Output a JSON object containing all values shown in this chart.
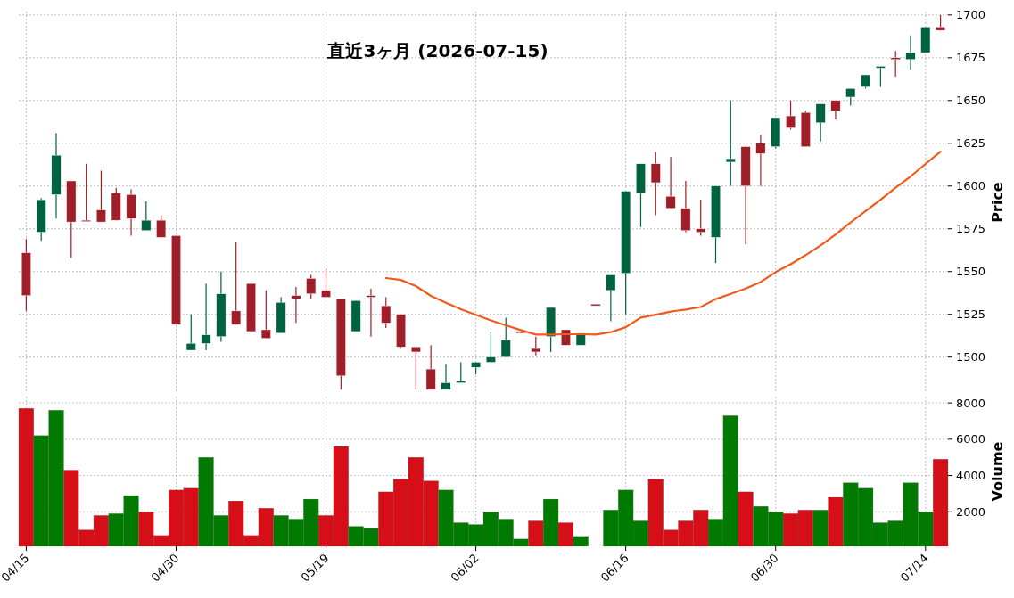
{
  "chart_data": [
    {
      "type": "candlestick",
      "title": "直近3ヶ月 (2026-07-15)",
      "ylabel": "Price",
      "tick_labels": "y",
      "grid": true,
      "categories": [
        null,
        null,
        null,
        null,
        null,
        null,
        null,
        null,
        null,
        null,
        null,
        null,
        null,
        null,
        null,
        null,
        null,
        null,
        null,
        null,
        null,
        null,
        null,
        null,
        null,
        null,
        null,
        null,
        null,
        null,
        null,
        null,
        null,
        null,
        null,
        null,
        null,
        null,
        null,
        null,
        null,
        null,
        null,
        null,
        null,
        null,
        null,
        null,
        null,
        null,
        null,
        null,
        null,
        null,
        null,
        null,
        null,
        null,
        null,
        null,
        null,
        null
      ],
      "ohlc": [
        [
          1561,
          1569,
          1527,
          1536
        ],
        [
          1573,
          1593,
          1568,
          1592
        ],
        [
          1595,
          1631,
          1581,
          1618
        ],
        [
          1603,
          1603,
          1558,
          1579
        ],
        [
          1580,
          1613,
          1580,
          1580
        ],
        [
          1586,
          1609,
          1579,
          1579
        ],
        [
          1596,
          1599,
          1580,
          1580
        ],
        [
          1595,
          1598,
          1571,
          1581
        ],
        [
          1574,
          1591,
          1574,
          1580
        ],
        [
          1580,
          1583,
          1570,
          1570
        ],
        [
          1571,
          1571,
          1519,
          1519
        ],
        [
          1504,
          1525,
          1504,
          1508
        ],
        [
          1508,
          1543,
          1504,
          1513
        ],
        [
          1512,
          1550,
          1509,
          1537
        ],
        [
          1527,
          1567,
          1519,
          1519
        ],
        [
          1543,
          1543,
          1515,
          1515
        ],
        [
          1516,
          1539,
          1511,
          1511
        ],
        [
          1514,
          1535,
          1514,
          1532
        ],
        [
          1536,
          1541,
          1520,
          1534
        ],
        [
          1546,
          1548,
          1534,
          1537
        ],
        [
          1539,
          1552,
          1535,
          1535
        ],
        [
          1534,
          1534,
          1481,
          1489
        ],
        [
          1515,
          1533,
          1515,
          1533
        ],
        [
          1536,
          1540,
          1512,
          1535
        ],
        [
          1530,
          1535,
          1517,
          1520
        ],
        [
          1525,
          1525,
          1505,
          1506
        ],
        [
          1506,
          1506,
          1481,
          1503
        ],
        [
          1493,
          1507,
          1481,
          1481
        ],
        [
          1481,
          1496,
          1481,
          1485
        ],
        [
          1485,
          1497,
          1485,
          1486
        ],
        [
          1494,
          1497,
          1490,
          1497
        ],
        [
          1497,
          1515,
          1497,
          1500
        ],
        [
          1500,
          1523,
          1500,
          1510
        ],
        [
          1515,
          1515,
          1514,
          1514
        ],
        [
          1505,
          1512,
          1501,
          1503
        ],
        [
          1512,
          1529,
          1503,
          1529
        ],
        [
          1516,
          1516,
          1507,
          1507
        ],
        [
          1507,
          1514,
          1507,
          1514
        ],
        [
          1531,
          1531,
          1530,
          1530
        ],
        [
          1539,
          1548,
          1521,
          1548
        ],
        [
          1549,
          1597,
          1525,
          1597
        ],
        [
          1596,
          1613,
          1576,
          1613
        ],
        [
          1613,
          1620,
          1583,
          1602
        ],
        [
          1594,
          1617,
          1587,
          1587
        ],
        [
          1587,
          1603,
          1573,
          1574
        ],
        [
          1575,
          1592,
          1571,
          1573
        ],
        [
          1570,
          1600,
          1555,
          1600
        ],
        [
          1614,
          1650,
          1600,
          1616
        ],
        [
          1623,
          1623,
          1566,
          1600
        ],
        [
          1625,
          1630,
          1600,
          1619
        ],
        [
          1623,
          1640,
          1622,
          1640
        ],
        [
          1641,
          1650,
          1633,
          1634
        ],
        [
          1643,
          1644,
          1623,
          1623
        ],
        [
          1637,
          1648,
          1626,
          1648
        ],
        [
          1650,
          1650,
          1639,
          1644
        ],
        [
          1652,
          1657,
          1647,
          1657
        ],
        [
          1658,
          1665,
          1657,
          1665
        ],
        [
          1669,
          1670,
          1658,
          1670
        ],
        [
          1675,
          1679,
          1664,
          1674
        ],
        [
          1674,
          1688,
          1668,
          1678
        ],
        [
          1678,
          1693,
          1678,
          1693
        ],
        [
          1693,
          1700,
          1691,
          1691
        ]
      ],
      "colors": [
        "#a01e28",
        "#006340",
        "#006340",
        "#a01e28",
        "#a01e28",
        "#a01e28",
        "#a01e28",
        "#a01e28",
        "#006340",
        "#a01e28",
        "#a01e28",
        "#006340",
        "#006340",
        "#006340",
        "#a01e28",
        "#a01e28",
        "#a01e28",
        "#006340",
        "#a01e28",
        "#a01e28",
        "#a01e28",
        "#a01e28",
        "#006340",
        "#a01e28",
        "#a01e28",
        "#a01e28",
        "#a01e28",
        "#a01e28",
        "#006340",
        "#006340",
        "#006340",
        "#006340",
        "#006340",
        "#a01e28",
        "#a01e28",
        "#006340",
        "#a01e28",
        "#006340",
        "#a01e28",
        "#006340",
        "#006340",
        "#006340",
        "#a01e28",
        "#a01e28",
        "#a01e28",
        "#a01e28",
        "#006340",
        "#006340",
        "#a01e28",
        "#a01e28",
        "#006340",
        "#a01e28",
        "#a01e28",
        "#006340",
        "#a01e28",
        "#006340",
        "#006340",
        "#006340",
        "#a01e28",
        "#006340",
        "#006340",
        "#a01e28"
      ],
      "series": [
        {
          "type": "line",
          "color": "#f05a1e",
          "values": [
            null,
            null,
            null,
            null,
            null,
            null,
            null,
            null,
            null,
            null,
            null,
            null,
            null,
            null,
            null,
            null,
            null,
            null,
            null,
            null,
            null,
            null,
            null,
            null,
            1546.2,
            1545.1,
            1541.5,
            1535.8,
            1531.8,
            1528,
            1524.7,
            1521.5,
            1518.6,
            1515.8,
            1513.2,
            1513.2,
            1513.4,
            1513.4,
            1513.2,
            1514.6,
            1517.5,
            1523.1,
            1524.8,
            1526.6,
            1527.8,
            1529.3,
            1533.9,
            1537,
            1540.1,
            1543.9,
            1549.7,
            1554.3,
            1559.6,
            1565.3,
            1571.7,
            1578.7,
            1585.3,
            1592,
            1599,
            1605.6,
            1612.9,
            1620.1
          ]
        }
      ],
      "ylim": [
        1479,
        1702
      ],
      "yticks": [
        1500,
        1525,
        1550,
        1575,
        1600,
        1625,
        1650,
        1675,
        1700
      ]
    },
    {
      "type": "bar",
      "ylabel": "Volume",
      "grid": true,
      "categories": [
        "04/15",
        null,
        null,
        null,
        null,
        null,
        null,
        null,
        null,
        null,
        "04/30",
        null,
        null,
        null,
        null,
        null,
        null,
        null,
        null,
        null,
        "05/19",
        null,
        null,
        null,
        null,
        null,
        null,
        null,
        null,
        null,
        "06/02",
        null,
        null,
        null,
        null,
        null,
        null,
        null,
        null,
        null,
        "06/16",
        null,
        null,
        null,
        null,
        null,
        null,
        null,
        null,
        null,
        "06/30",
        null,
        null,
        null,
        null,
        null,
        null,
        null,
        null,
        null,
        "07/14",
        null
      ],
      "values": [
        7700,
        6200,
        7600,
        4300,
        1000,
        1800,
        1900,
        2900,
        2000,
        700,
        3200,
        3300,
        5000,
        1800,
        2600,
        700,
        2200,
        1800,
        1600,
        2700,
        1800,
        5600,
        1200,
        1100,
        3100,
        3800,
        5000,
        3700,
        3200,
        1400,
        1300,
        2000,
        1600,
        500,
        1500,
        2700,
        1400,
        650,
        null,
        2100,
        3200,
        1500,
        3800,
        1000,
        1500,
        2100,
        1600,
        7300,
        3100,
        2300,
        2000,
        1900,
        2100,
        2100,
        2800,
        3600,
        3300,
        1400,
        1500,
        3600,
        2000,
        4900
      ],
      "colors": [
        "#d50e18",
        "#007a00",
        "#007a00",
        "#d50e18",
        "#d50e18",
        "#d50e18",
        "#007a00",
        "#007a00",
        "#d50e18",
        "#d50e18",
        "#d50e18",
        "#d50e18",
        "#007a00",
        "#007a00",
        "#d50e18",
        "#d50e18",
        "#d50e18",
        "#007a00",
        "#007a00",
        "#007a00",
        "#d50e18",
        "#d50e18",
        "#007a00",
        "#007a00",
        "#d50e18",
        "#d50e18",
        "#d50e18",
        "#d50e18",
        "#007a00",
        "#007a00",
        "#007a00",
        "#007a00",
        "#007a00",
        "#007a00",
        "#d50e18",
        "#007a00",
        "#d50e18",
        "#007a00",
        null,
        "#007a00",
        "#007a00",
        "#007a00",
        "#d50e18",
        "#d50e18",
        "#d50e18",
        "#d50e18",
        "#007a00",
        "#007a00",
        "#d50e18",
        "#007a00",
        "#007a00",
        "#d50e18",
        "#d50e18",
        "#007a00",
        "#d50e18",
        "#007a00",
        "#007a00",
        "#007a00",
        "#007a00",
        "#007a00",
        "#007a00",
        "#d50e18"
      ],
      "ylim": [
        100,
        8350
      ],
      "yticks": [
        2000,
        4000,
        6000,
        8000
      ]
    }
  ]
}
